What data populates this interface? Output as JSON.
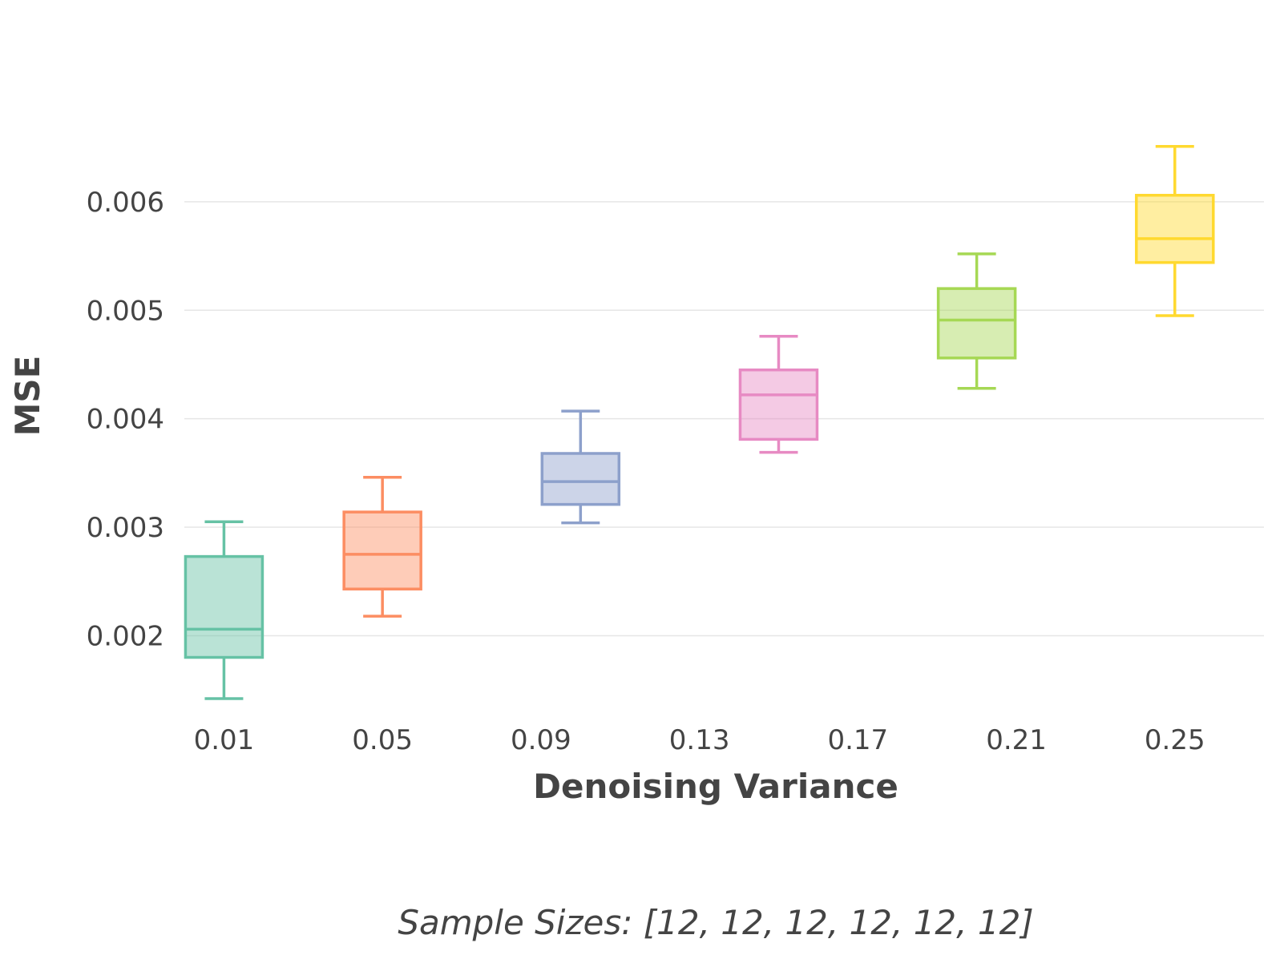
{
  "chart_data": {
    "type": "box",
    "xlabel": "Denoising Variance",
    "ylabel": "MSE",
    "x_ticks": [
      "0.01",
      "0.05",
      "0.09",
      "0.13",
      "0.17",
      "0.21",
      "0.25"
    ],
    "y_ticks": [
      "0.002",
      "0.003",
      "0.004",
      "0.005",
      "0.006"
    ],
    "y_tick_values": [
      0.002,
      0.003,
      0.004,
      0.005,
      0.006
    ],
    "ylim": [
      0.00125,
      0.0069
    ],
    "xlim": [
      0.0,
      0.2725
    ],
    "grid": "horizontal",
    "caption": "Sample Sizes: [12, 12, 12, 12, 12, 12]",
    "series": [
      {
        "x": 0.01,
        "color": "#66c2a5",
        "min": 0.00142,
        "q1": 0.0018,
        "median": 0.00206,
        "q3": 0.00273,
        "max": 0.00305
      },
      {
        "x": 0.05,
        "color": "#fc8d62",
        "min": 0.00218,
        "q1": 0.00243,
        "median": 0.00275,
        "q3": 0.00314,
        "max": 0.00346
      },
      {
        "x": 0.1,
        "color": "#8da0cb",
        "min": 0.00304,
        "q1": 0.00321,
        "median": 0.00342,
        "q3": 0.00368,
        "max": 0.00407
      },
      {
        "x": 0.15,
        "color": "#e78ac3",
        "min": 0.00369,
        "q1": 0.00381,
        "median": 0.00422,
        "q3": 0.00445,
        "max": 0.00476
      },
      {
        "x": 0.2,
        "color": "#a6d854",
        "min": 0.00428,
        "q1": 0.00456,
        "median": 0.00491,
        "q3": 0.0052,
        "max": 0.00552
      },
      {
        "x": 0.25,
        "color": "#ffd92f",
        "min": 0.00495,
        "q1": 0.00544,
        "median": 0.00566,
        "q3": 0.00606,
        "max": 0.00651
      }
    ]
  }
}
